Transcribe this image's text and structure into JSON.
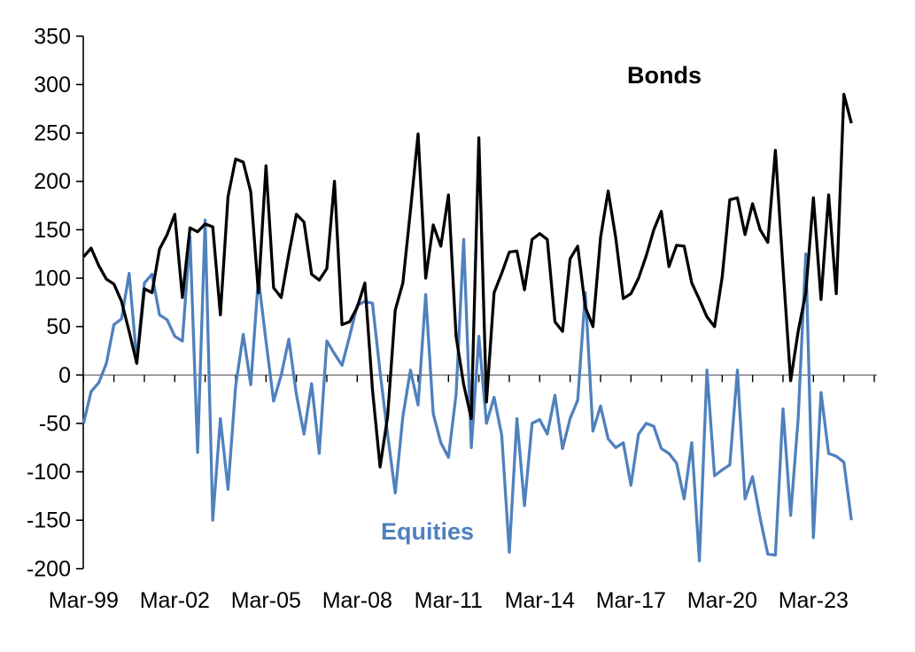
{
  "chart_data": {
    "type": "line",
    "title": "",
    "subtitle": "",
    "grid": "zero-line-only",
    "legend_position": "inline-labels",
    "x_quarters": [
      "Mar-99",
      "Jun-99",
      "Sep-99",
      "Dec-99",
      "Mar-00",
      "Jun-00",
      "Sep-00",
      "Dec-00",
      "Mar-01",
      "Jun-01",
      "Sep-01",
      "Dec-01",
      "Mar-02",
      "Jun-02",
      "Sep-02",
      "Dec-02",
      "Mar-03",
      "Jun-03",
      "Sep-03",
      "Dec-03",
      "Mar-04",
      "Jun-04",
      "Sep-04",
      "Dec-04",
      "Mar-05",
      "Jun-05",
      "Sep-05",
      "Dec-05",
      "Mar-06",
      "Jun-06",
      "Sep-06",
      "Dec-06",
      "Mar-07",
      "Jun-07",
      "Sep-07",
      "Dec-07",
      "Mar-08",
      "Jun-08",
      "Sep-08",
      "Dec-08",
      "Mar-09",
      "Jun-09",
      "Sep-09",
      "Dec-09",
      "Mar-10",
      "Jun-10",
      "Sep-10",
      "Dec-10",
      "Mar-11",
      "Jun-11",
      "Sep-11",
      "Dec-11",
      "Mar-12",
      "Jun-12",
      "Sep-12",
      "Dec-12",
      "Mar-13",
      "Jun-13",
      "Sep-13",
      "Dec-13",
      "Mar-14",
      "Jun-14",
      "Sep-14",
      "Dec-14",
      "Mar-15",
      "Jun-15",
      "Sep-15",
      "Dec-15",
      "Mar-16",
      "Jun-16",
      "Sep-16",
      "Dec-16",
      "Mar-17",
      "Jun-17",
      "Sep-17",
      "Dec-17",
      "Mar-18",
      "Jun-18",
      "Sep-18",
      "Dec-18",
      "Mar-19",
      "Jun-19",
      "Sep-19",
      "Dec-19",
      "Mar-20",
      "Jun-20",
      "Sep-20",
      "Dec-20",
      "Mar-21",
      "Jun-21",
      "Sep-21",
      "Dec-21",
      "Mar-22",
      "Jun-22",
      "Sep-22",
      "Dec-22",
      "Mar-23",
      "Jun-23",
      "Sep-23",
      "Dec-23",
      "Mar-24",
      "Jun-24"
    ],
    "series": [
      {
        "name": "Bonds",
        "color": "#000000",
        "values": [
          122,
          131,
          113,
          99,
          94,
          76,
          45,
          12,
          89,
          85,
          130,
          145,
          166,
          80,
          152,
          148,
          156,
          153,
          62,
          184,
          223,
          220,
          189,
          85,
          216,
          90,
          80,
          125,
          166,
          158,
          104,
          98,
          110,
          200,
          52,
          55,
          70,
          95,
          -15,
          -95,
          -43,
          67,
          95,
          170,
          249,
          100,
          155,
          133,
          186,
          40,
          -10,
          -45,
          245,
          -28,
          85,
          105,
          127,
          128,
          88,
          140,
          146,
          140,
          55,
          45,
          120,
          133,
          70,
          50,
          142,
          190,
          142,
          79,
          84,
          100,
          123,
          150,
          169,
          112,
          134,
          133,
          95,
          78,
          60,
          50,
          101,
          181,
          183,
          145,
          177,
          150,
          137,
          232,
          110,
          -6,
          45,
          85,
          183,
          78,
          186,
          84,
          290,
          260
        ]
      },
      {
        "name": "Equities",
        "color": "#4F81BD",
        "values": [
          -50,
          -17,
          -8,
          12,
          52,
          58,
          105,
          15,
          95,
          104,
          62,
          57,
          40,
          35,
          143,
          -80,
          160,
          -150,
          -45,
          -118,
          -12,
          42,
          -10,
          100,
          35,
          -27,
          0,
          37,
          -20,
          -61,
          -9,
          -81,
          35,
          22,
          10,
          40,
          72,
          76,
          74,
          3,
          -61,
          -122,
          -43,
          5,
          -31,
          83,
          -40,
          -70,
          -85,
          -20,
          140,
          -75,
          40,
          -50,
          -23,
          -62,
          -183,
          -45,
          -135,
          -50,
          -46,
          -61,
          -21,
          -76,
          -45,
          -26,
          85,
          -58,
          -32,
          -66,
          -75,
          -70,
          -114,
          -61,
          -50,
          -53,
          -76,
          -81,
          -91,
          -128,
          -70,
          -192,
          5,
          -104,
          -98,
          -93,
          5,
          -128,
          -105,
          -148,
          -185,
          -186,
          -35,
          -145,
          -45,
          125,
          -168,
          -18,
          -81,
          -84,
          -90,
          -150
        ]
      }
    ],
    "y_axis": {
      "min": -200,
      "max": 350,
      "step": 50,
      "tick_labels": [
        "350",
        "300",
        "250",
        "200",
        "150",
        "100",
        "50",
        "0",
        "-50",
        "-100",
        "-150",
        "-200"
      ]
    },
    "x_axis": {
      "tick_labels": [
        "Mar-99",
        "Mar-02",
        "Mar-05",
        "Mar-08",
        "Mar-11",
        "Mar-14",
        "Mar-17",
        "Mar-20",
        "Mar-23"
      ],
      "label_every_years": 3,
      "minor_tick_every_years": 1,
      "minor_tick_count": 27
    },
    "labels": {
      "bonds": "Bonds",
      "equities": "Equities"
    }
  }
}
